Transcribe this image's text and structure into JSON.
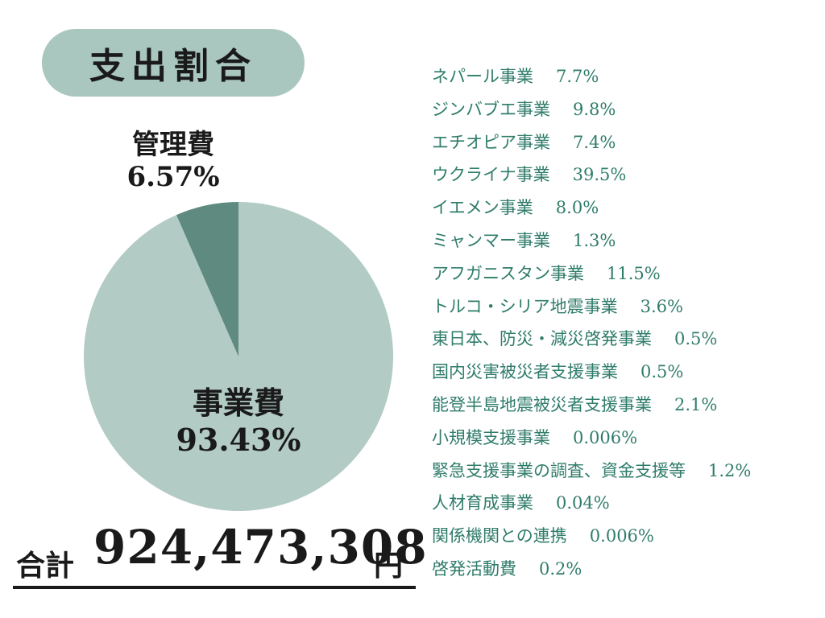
{
  "title": "支出割合",
  "colors": {
    "project": "#b2cbc4",
    "admin": "#5f8a7f",
    "accent_text": "#2f7c6a",
    "pill": "#a9c6bf"
  },
  "chart_data": {
    "type": "pie",
    "slices": [
      {
        "label": "事業費",
        "value": 93.43,
        "value_label": "93.43%"
      },
      {
        "label": "管理費",
        "value": 6.57,
        "value_label": "6.57%"
      }
    ]
  },
  "total": {
    "label": "合計",
    "amount": "924,473,308",
    "unit": "円"
  },
  "breakdown": [
    {
      "name": "ネパール事業",
      "value": "7.7%"
    },
    {
      "name": "ジンバブエ事業",
      "value": "9.8%"
    },
    {
      "name": "エチオピア事業",
      "value": "7.4%"
    },
    {
      "name": "ウクライナ事業",
      "value": "39.5%"
    },
    {
      "name": "イエメン事業",
      "value": "8.0%"
    },
    {
      "name": "ミャンマー事業",
      "value": "1.3%"
    },
    {
      "name": "アフガニスタン事業",
      "value": "11.5%"
    },
    {
      "name": "トルコ・シリア地震事業",
      "value": "3.6%"
    },
    {
      "name": "東日本、防災・減災啓発事業",
      "value": "0.5%"
    },
    {
      "name": "国内災害被災者支援事業",
      "value": "0.5%"
    },
    {
      "name": "能登半島地震被災者支援事業",
      "value": "2.1%"
    },
    {
      "name": "小規模支援事業",
      "value": "0.006%"
    },
    {
      "name": "緊急支援事業の調査、資金支援等",
      "value": "1.2%"
    },
    {
      "name": "人材育成事業",
      "value": "0.04%"
    },
    {
      "name": "関係機関との連携",
      "value": "0.006%"
    },
    {
      "name": "啓発活動費",
      "value": "0.2%"
    }
  ]
}
